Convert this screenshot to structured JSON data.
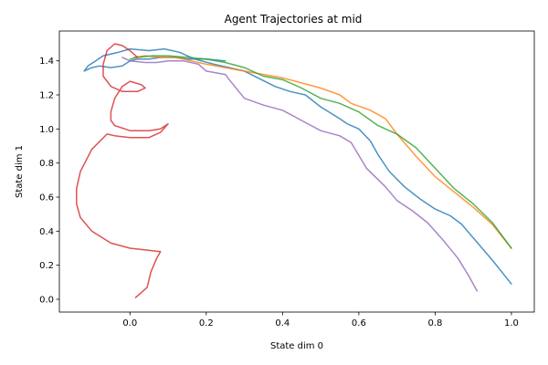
{
  "chart_data": {
    "type": "line",
    "title": "Agent Trajectories at mid",
    "xlabel": "State dim 0",
    "ylabel": "State dim 1",
    "xlim": [
      -0.185,
      1.06
    ],
    "ylim": [
      -0.075,
      1.575
    ],
    "xticks": [
      "0.0",
      "0.2",
      "0.4",
      "0.6",
      "0.8",
      "1.0"
    ],
    "yticks": [
      "0.0",
      "0.2",
      "0.4",
      "0.6",
      "0.8",
      "1.0",
      "1.2",
      "1.4"
    ],
    "xtick_values": [
      0.0,
      0.2,
      0.4,
      0.6,
      0.8,
      1.0
    ],
    "ytick_values": [
      0.0,
      0.2,
      0.4,
      0.6,
      0.8,
      1.0,
      1.2,
      1.4
    ],
    "grid": false,
    "series": [
      {
        "color": "#1f77b4",
        "points": [
          [
            1.0,
            0.09
          ],
          [
            0.95,
            0.23
          ],
          [
            0.9,
            0.36
          ],
          [
            0.87,
            0.44
          ],
          [
            0.84,
            0.49
          ],
          [
            0.8,
            0.53
          ],
          [
            0.76,
            0.59
          ],
          [
            0.72,
            0.66
          ],
          [
            0.68,
            0.75
          ],
          [
            0.65,
            0.85
          ],
          [
            0.63,
            0.93
          ],
          [
            0.6,
            1.0
          ],
          [
            0.57,
            1.03
          ],
          [
            0.55,
            1.06
          ],
          [
            0.5,
            1.13
          ],
          [
            0.46,
            1.2
          ],
          [
            0.42,
            1.22
          ],
          [
            0.38,
            1.25
          ],
          [
            0.3,
            1.34
          ],
          [
            0.22,
            1.38
          ],
          [
            0.17,
            1.41
          ],
          [
            0.13,
            1.45
          ],
          [
            0.09,
            1.47
          ],
          [
            0.05,
            1.46
          ],
          [
            0.0,
            1.47
          ],
          [
            -0.03,
            1.45
          ],
          [
            -0.07,
            1.43
          ],
          [
            -0.09,
            1.4
          ],
          [
            -0.11,
            1.37
          ],
          [
            -0.12,
            1.34
          ],
          [
            -0.1,
            1.36
          ],
          [
            -0.08,
            1.37
          ],
          [
            -0.05,
            1.36
          ],
          [
            -0.02,
            1.37
          ],
          [
            0.0,
            1.4
          ],
          [
            0.02,
            1.41
          ],
          [
            0.05,
            1.41
          ],
          [
            0.08,
            1.42
          ],
          [
            0.12,
            1.42
          ],
          [
            0.15,
            1.41
          ],
          [
            0.2,
            1.41
          ],
          [
            0.25,
            1.4
          ]
        ]
      },
      {
        "color": "#ff7f0e",
        "points": [
          [
            1.0,
            0.3
          ],
          [
            0.95,
            0.44
          ],
          [
            0.9,
            0.54
          ],
          [
            0.85,
            0.63
          ],
          [
            0.8,
            0.72
          ],
          [
            0.75,
            0.84
          ],
          [
            0.7,
            0.97
          ],
          [
            0.67,
            1.06
          ],
          [
            0.63,
            1.11
          ],
          [
            0.58,
            1.15
          ],
          [
            0.55,
            1.2
          ],
          [
            0.5,
            1.24
          ],
          [
            0.45,
            1.27
          ],
          [
            0.4,
            1.3
          ],
          [
            0.35,
            1.32
          ],
          [
            0.3,
            1.34
          ],
          [
            0.25,
            1.36
          ],
          [
            0.2,
            1.38
          ],
          [
            0.16,
            1.4
          ],
          [
            0.12,
            1.42
          ],
          [
            0.08,
            1.42
          ],
          [
            0.04,
            1.43
          ],
          [
            0.01,
            1.42
          ]
        ]
      },
      {
        "color": "#2ca02c",
        "points": [
          [
            1.0,
            0.3
          ],
          [
            0.95,
            0.45
          ],
          [
            0.9,
            0.56
          ],
          [
            0.85,
            0.65
          ],
          [
            0.8,
            0.77
          ],
          [
            0.75,
            0.89
          ],
          [
            0.7,
            0.97
          ],
          [
            0.65,
            1.02
          ],
          [
            0.6,
            1.1
          ],
          [
            0.55,
            1.15
          ],
          [
            0.5,
            1.18
          ],
          [
            0.45,
            1.24
          ],
          [
            0.4,
            1.29
          ],
          [
            0.35,
            1.31
          ],
          [
            0.3,
            1.36
          ],
          [
            0.25,
            1.39
          ],
          [
            0.2,
            1.41
          ],
          [
            0.15,
            1.42
          ],
          [
            0.1,
            1.43
          ],
          [
            0.06,
            1.43
          ],
          [
            0.02,
            1.42
          ],
          [
            0.0,
            1.41
          ]
        ]
      },
      {
        "color": "#d62728",
        "points": [
          [
            0.015,
            0.01
          ],
          [
            0.035,
            0.05
          ],
          [
            0.045,
            0.07
          ],
          [
            0.055,
            0.16
          ],
          [
            0.07,
            0.24
          ],
          [
            0.08,
            0.28
          ],
          [
            0.04,
            0.29
          ],
          [
            0.0,
            0.3
          ],
          [
            -0.05,
            0.33
          ],
          [
            -0.1,
            0.4
          ],
          [
            -0.13,
            0.48
          ],
          [
            -0.14,
            0.56
          ],
          [
            -0.14,
            0.65
          ],
          [
            -0.13,
            0.75
          ],
          [
            -0.1,
            0.88
          ],
          [
            -0.06,
            0.97
          ],
          [
            -0.04,
            0.96
          ],
          [
            0.0,
            0.95
          ],
          [
            0.05,
            0.95
          ],
          [
            0.08,
            0.98
          ],
          [
            0.1,
            1.03
          ],
          [
            0.08,
            1.0
          ],
          [
            0.05,
            0.99
          ],
          [
            0.0,
            0.99
          ],
          [
            -0.04,
            1.02
          ],
          [
            -0.05,
            1.05
          ],
          [
            -0.05,
            1.1
          ],
          [
            -0.04,
            1.18
          ],
          [
            -0.02,
            1.25
          ],
          [
            0.0,
            1.28
          ],
          [
            0.03,
            1.26
          ],
          [
            0.04,
            1.24
          ],
          [
            0.02,
            1.22
          ],
          [
            -0.02,
            1.22
          ],
          [
            -0.05,
            1.25
          ],
          [
            -0.07,
            1.31
          ],
          [
            -0.07,
            1.38
          ],
          [
            -0.06,
            1.46
          ],
          [
            -0.04,
            1.5
          ],
          [
            -0.02,
            1.49
          ],
          [
            0.0,
            1.46
          ],
          [
            0.02,
            1.42
          ]
        ]
      },
      {
        "color": "#9467bd",
        "points": [
          [
            0.91,
            0.05
          ],
          [
            0.89,
            0.13
          ],
          [
            0.86,
            0.24
          ],
          [
            0.82,
            0.35
          ],
          [
            0.78,
            0.45
          ],
          [
            0.74,
            0.52
          ],
          [
            0.7,
            0.58
          ],
          [
            0.67,
            0.66
          ],
          [
            0.62,
            0.77
          ],
          [
            0.58,
            0.92
          ],
          [
            0.55,
            0.96
          ],
          [
            0.5,
            0.99
          ],
          [
            0.45,
            1.05
          ],
          [
            0.4,
            1.11
          ],
          [
            0.35,
            1.14
          ],
          [
            0.3,
            1.18
          ],
          [
            0.26,
            1.29
          ],
          [
            0.25,
            1.32
          ],
          [
            0.2,
            1.34
          ],
          [
            0.18,
            1.38
          ],
          [
            0.14,
            1.4
          ],
          [
            0.1,
            1.4
          ],
          [
            0.07,
            1.39
          ],
          [
            0.04,
            1.39
          ],
          [
            0.0,
            1.4
          ],
          [
            -0.02,
            1.42
          ]
        ]
      }
    ]
  }
}
